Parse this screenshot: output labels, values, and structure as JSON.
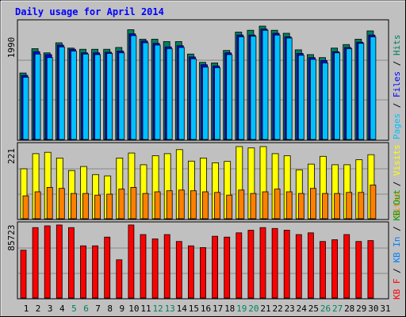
{
  "title": "Daily usage for April 2014",
  "y_max_labels": {
    "hits": "1990",
    "visits": "221",
    "kbytes": "85723"
  },
  "side_labels": {
    "pages": "Pages",
    "files": "Files",
    "hits": "Hits",
    "visits": "Visits",
    "sites": "Sites",
    "kbin": "KB In",
    "kbout": "KB Out",
    "kbf": "KB F"
  },
  "colors": {
    "background": "#c0c0c0",
    "title": "#0000ff",
    "hits": "#008060",
    "files": "#0000ff",
    "pages": "#00c0ff",
    "visits": "#ffff00",
    "sites": "#ff8000",
    "kbytes": "#ff0000",
    "kbin": "#0080ff",
    "kbout": "#00a000",
    "weekend": "#008060"
  },
  "chart_data": [
    {
      "type": "bar",
      "name": "hits-files-pages",
      "categories": [
        "1",
        "2",
        "3",
        "4",
        "5",
        "6",
        "7",
        "8",
        "9",
        "10",
        "11",
        "12",
        "13",
        "14",
        "15",
        "16",
        "17",
        "18",
        "19",
        "20",
        "21",
        "22",
        "23",
        "24",
        "25",
        "26",
        "27",
        "28",
        "29",
        "30",
        "31"
      ],
      "ylim": [
        0,
        1990
      ],
      "series": [
        {
          "name": "Hits",
          "values": [
            1120,
            1530,
            1460,
            1630,
            1540,
            1520,
            1520,
            1520,
            1550,
            1850,
            1690,
            1690,
            1650,
            1650,
            1440,
            1300,
            1290,
            1500,
            1810,
            1840,
            1910,
            1840,
            1790,
            1510,
            1430,
            1380,
            1540,
            1600,
            1690,
            1830,
            0
          ]
        },
        {
          "name": "Files",
          "values": [
            1080,
            1480,
            1430,
            1590,
            1520,
            1460,
            1460,
            1470,
            1490,
            1780,
            1660,
            1620,
            1560,
            1580,
            1390,
            1260,
            1240,
            1460,
            1760,
            1760,
            1860,
            1790,
            1730,
            1450,
            1380,
            1330,
            1480,
            1550,
            1640,
            1760,
            0
          ]
        },
        {
          "name": "Pages",
          "values": [
            1050,
            1440,
            1380,
            1560,
            1490,
            1440,
            1430,
            1450,
            1460,
            1750,
            1630,
            1590,
            1530,
            1550,
            1360,
            1220,
            1210,
            1430,
            1730,
            1740,
            1840,
            1760,
            1710,
            1420,
            1350,
            1290,
            1460,
            1530,
            1620,
            1730,
            0
          ]
        }
      ]
    },
    {
      "type": "bar",
      "name": "visits-sites",
      "categories": [
        "1",
        "2",
        "3",
        "4",
        "5",
        "6",
        "7",
        "8",
        "9",
        "10",
        "11",
        "12",
        "13",
        "14",
        "15",
        "16",
        "17",
        "18",
        "19",
        "20",
        "21",
        "22",
        "23",
        "24",
        "25",
        "26",
        "27",
        "28",
        "29",
        "30",
        "31"
      ],
      "ylim": [
        0,
        221
      ],
      "series": [
        {
          "name": "Visits",
          "values": [
            148,
            193,
            197,
            180,
            143,
            155,
            131,
            127,
            180,
            195,
            160,
            187,
            193,
            205,
            171,
            180,
            166,
            170,
            214,
            210,
            214,
            193,
            187,
            145,
            162,
            185,
            160,
            160,
            175,
            190,
            0
          ]
        },
        {
          "name": "Sites",
          "values": [
            68,
            80,
            93,
            90,
            75,
            75,
            70,
            73,
            88,
            93,
            75,
            80,
            83,
            85,
            83,
            80,
            78,
            70,
            85,
            75,
            80,
            88,
            80,
            75,
            90,
            75,
            75,
            78,
            78,
            100,
            0
          ]
        }
      ]
    },
    {
      "type": "bar",
      "name": "kbytes",
      "categories": [
        "1",
        "2",
        "3",
        "4",
        "5",
        "6",
        "7",
        "8",
        "9",
        "10",
        "11",
        "12",
        "13",
        "14",
        "15",
        "16",
        "17",
        "18",
        "19",
        "20",
        "21",
        "22",
        "23",
        "24",
        "25",
        "26",
        "27",
        "28",
        "29",
        "30",
        "31"
      ],
      "ylim": [
        0,
        85723
      ],
      "series": [
        {
          "name": "KB F",
          "values": [
            55000,
            81000,
            83000,
            84000,
            81000,
            60000,
            60000,
            70000,
            44000,
            84000,
            73000,
            68000,
            73000,
            65000,
            60000,
            58000,
            71000,
            70000,
            75000,
            78000,
            81000,
            80000,
            78000,
            73000,
            75000,
            65000,
            67000,
            73000,
            65000,
            66000,
            0
          ]
        }
      ]
    }
  ],
  "weekend_days": [
    "5",
    "6",
    "12",
    "13",
    "19",
    "20",
    "26",
    "27"
  ]
}
